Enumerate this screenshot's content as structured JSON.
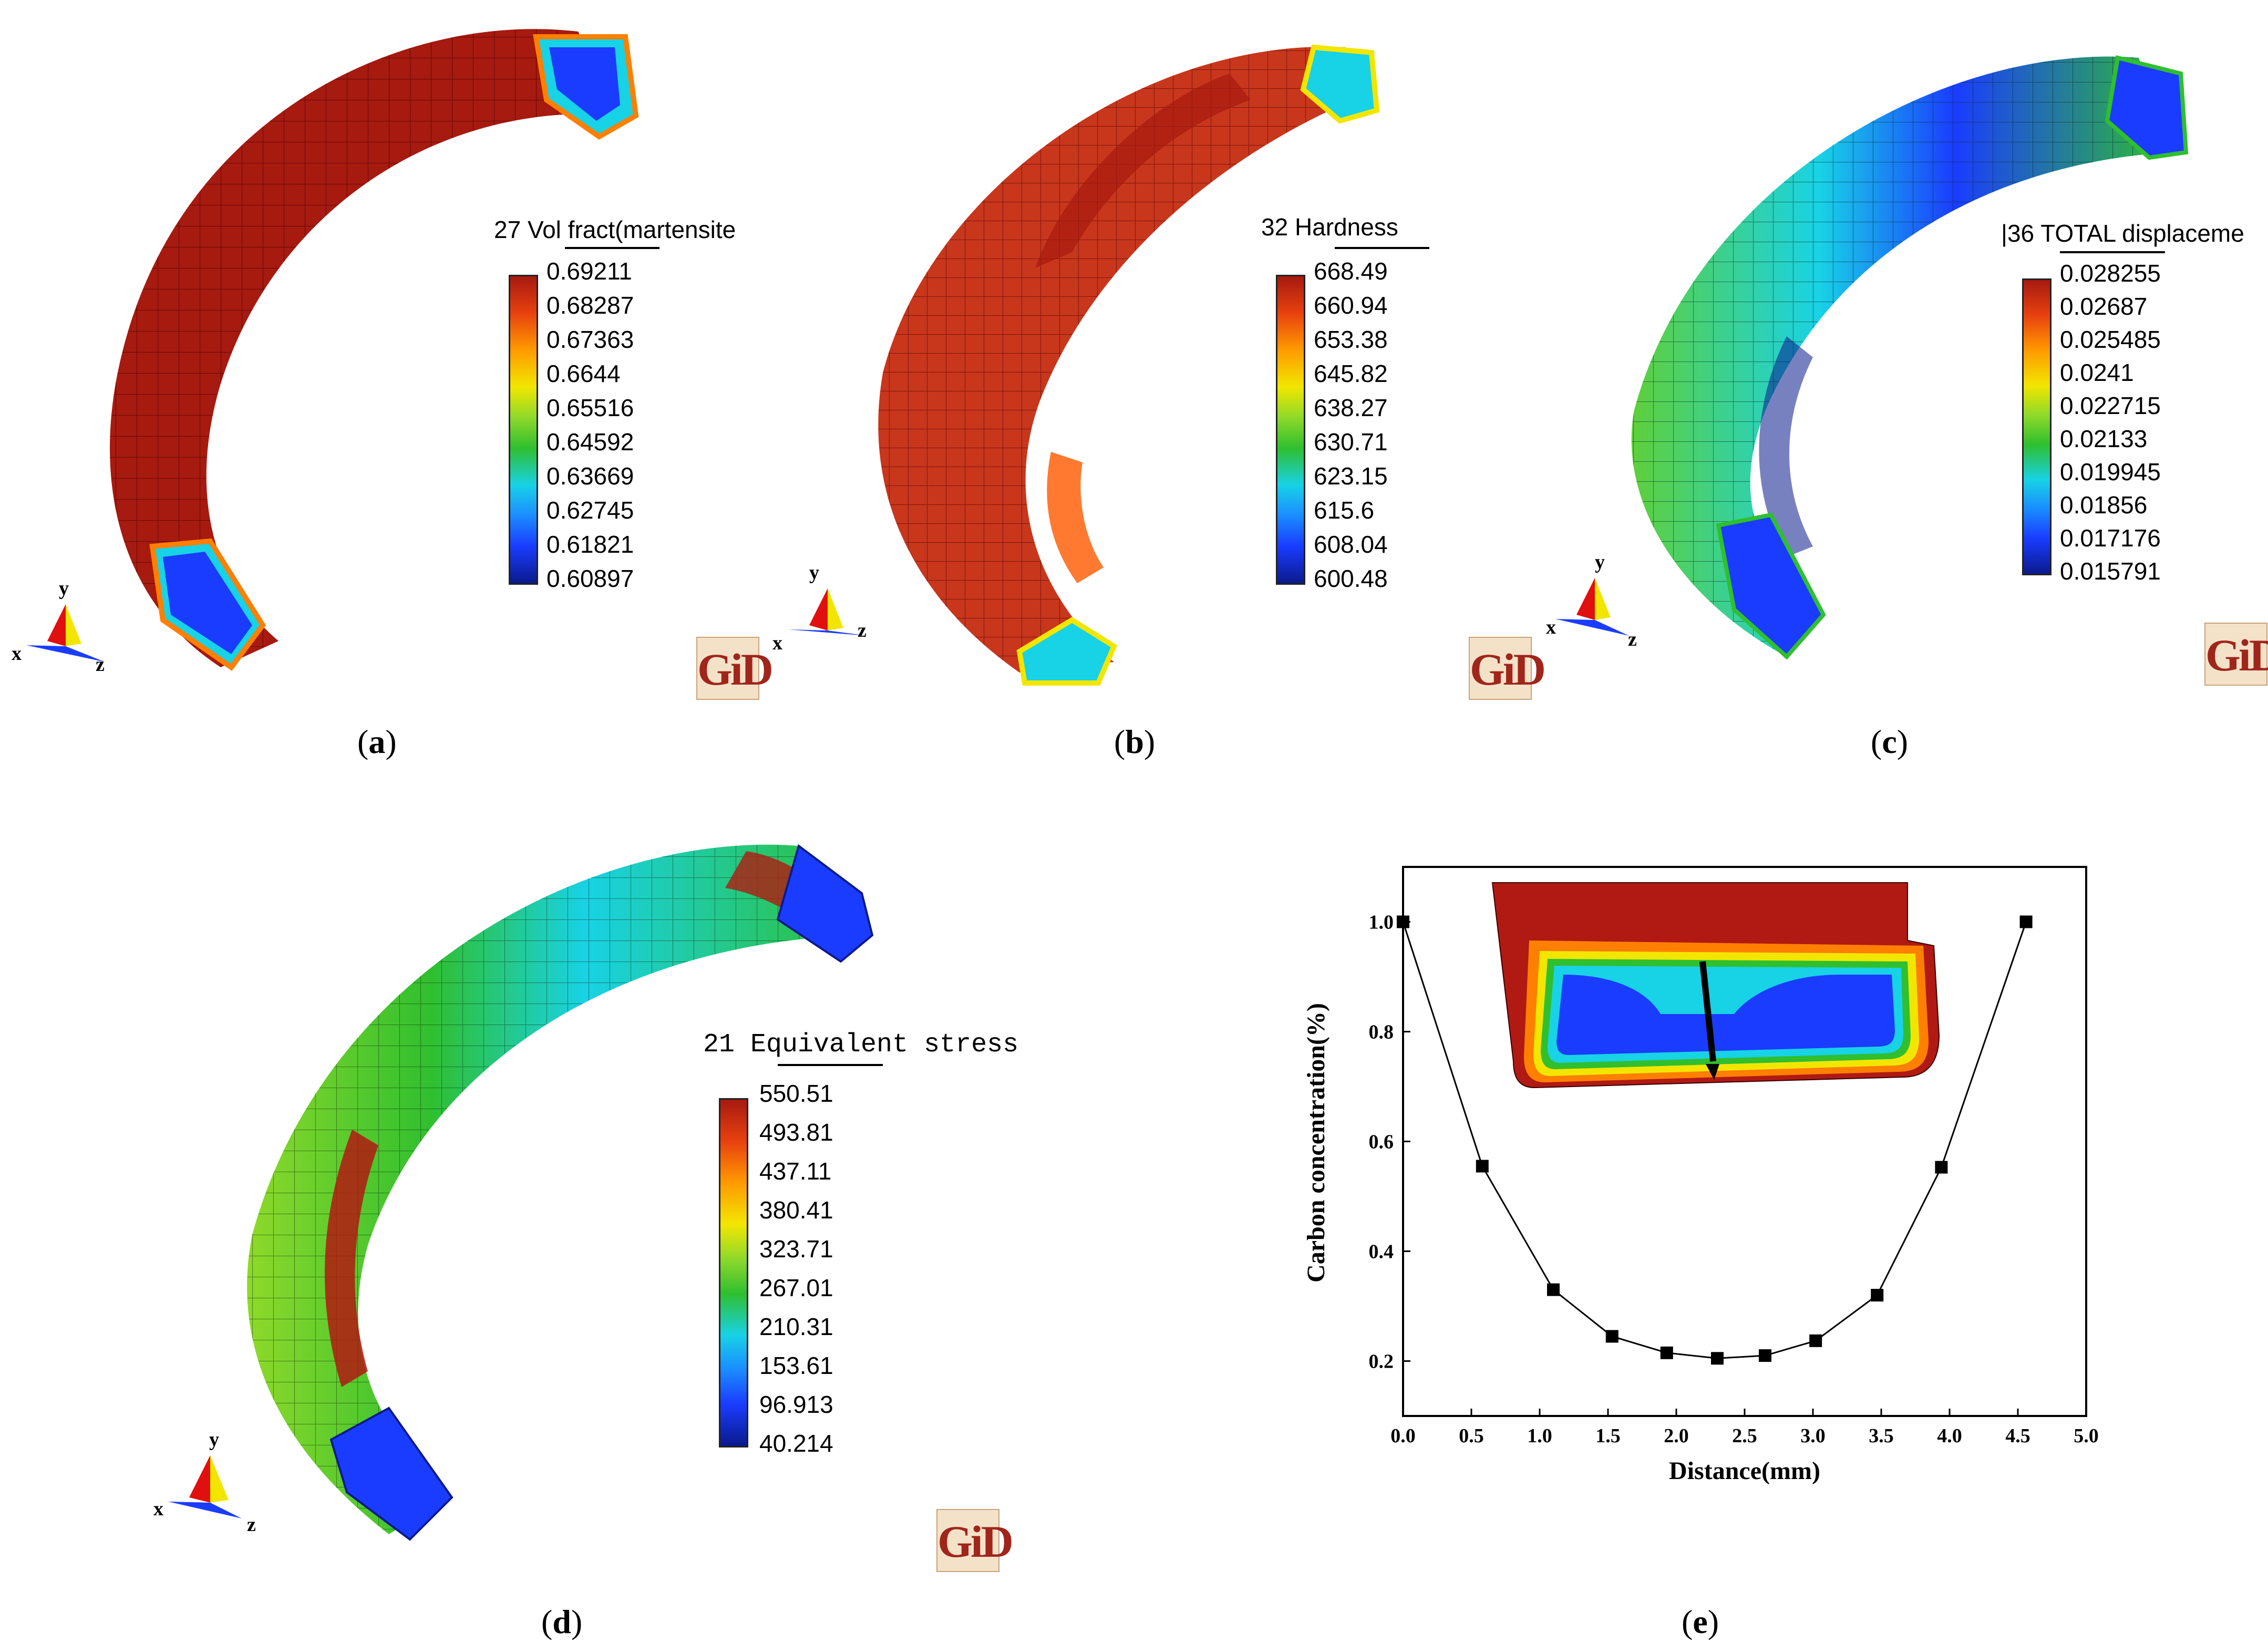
{
  "figure": {
    "panels": [
      {
        "id": "a",
        "caption": "a",
        "legend_title": "27 Vol fract(martensite",
        "legend_values": [
          "0.69211",
          "0.68287",
          "0.67363",
          "0.6644",
          "0.65516",
          "0.64592",
          "0.63669",
          "0.62745",
          "0.61821",
          "0.60897"
        ],
        "logo": "GiD",
        "axis_labels": {
          "x": "x",
          "y": "y",
          "z": "z"
        }
      },
      {
        "id": "b",
        "caption": "b",
        "legend_title": "32 Hardness",
        "legend_values": [
          "668.49",
          "660.94",
          "653.38",
          "645.82",
          "638.27",
          "630.71",
          "623.15",
          "615.6",
          "608.04",
          "600.48"
        ],
        "logo": "GiD",
        "axis_labels": {
          "x": "x",
          "y": "y",
          "z": "z"
        }
      },
      {
        "id": "c",
        "caption": "c",
        "legend_title": "|36 TOTAL displaceme",
        "legend_values": [
          "0.028255",
          "0.02687",
          "0.025485",
          "0.0241",
          "0.022715",
          "0.02133",
          "0.019945",
          "0.01856",
          "0.017176",
          "0.015791"
        ],
        "logo": "GiD",
        "axis_labels": {
          "x": "x",
          "y": "y",
          "z": "z"
        }
      },
      {
        "id": "d",
        "caption": "d",
        "legend_title": "21 Equivalent stress",
        "legend_values": [
          "550.51",
          "493.81",
          "437.11",
          "380.41",
          "323.71",
          "267.01",
          "210.31",
          "153.61",
          "96.913",
          "40.214"
        ],
        "logo": "GiD",
        "axis_labels": {
          "x": "x",
          "y": "y",
          "z": "z"
        }
      }
    ],
    "caption_e": "e",
    "colors": {
      "red": "#b01a12",
      "orange": "#ff7f00",
      "yellow": "#f2e600",
      "green": "#2fbf2f",
      "cyan": "#18d2e6",
      "blue": "#1a3cff",
      "navy": "#0a1a8c",
      "gid_red": "#a0251b"
    }
  },
  "chart_data": {
    "type": "line",
    "title": "",
    "xlabel": "Distance(mm)",
    "ylabel": "Carbon concentration(%)",
    "x": [
      0.0,
      0.58,
      1.1,
      1.53,
      1.93,
      2.3,
      2.65,
      3.02,
      3.47,
      3.94,
      4.56
    ],
    "y": [
      1.0,
      0.555,
      0.33,
      0.245,
      0.215,
      0.205,
      0.21,
      0.237,
      0.32,
      0.553,
      1.0
    ],
    "xlim": [
      0.0,
      5.0
    ],
    "ylim": [
      0.1,
      1.1
    ],
    "xticks": [
      "0.0",
      "0.5",
      "1.0",
      "1.5",
      "2.0",
      "2.5",
      "3.0",
      "3.5",
      "4.0",
      "4.5",
      "5.0"
    ],
    "yticks": [
      "0.2",
      "0.4",
      "0.6",
      "0.8",
      "1.0"
    ],
    "marker": "square",
    "inset": "cross-section contour with arrow"
  }
}
